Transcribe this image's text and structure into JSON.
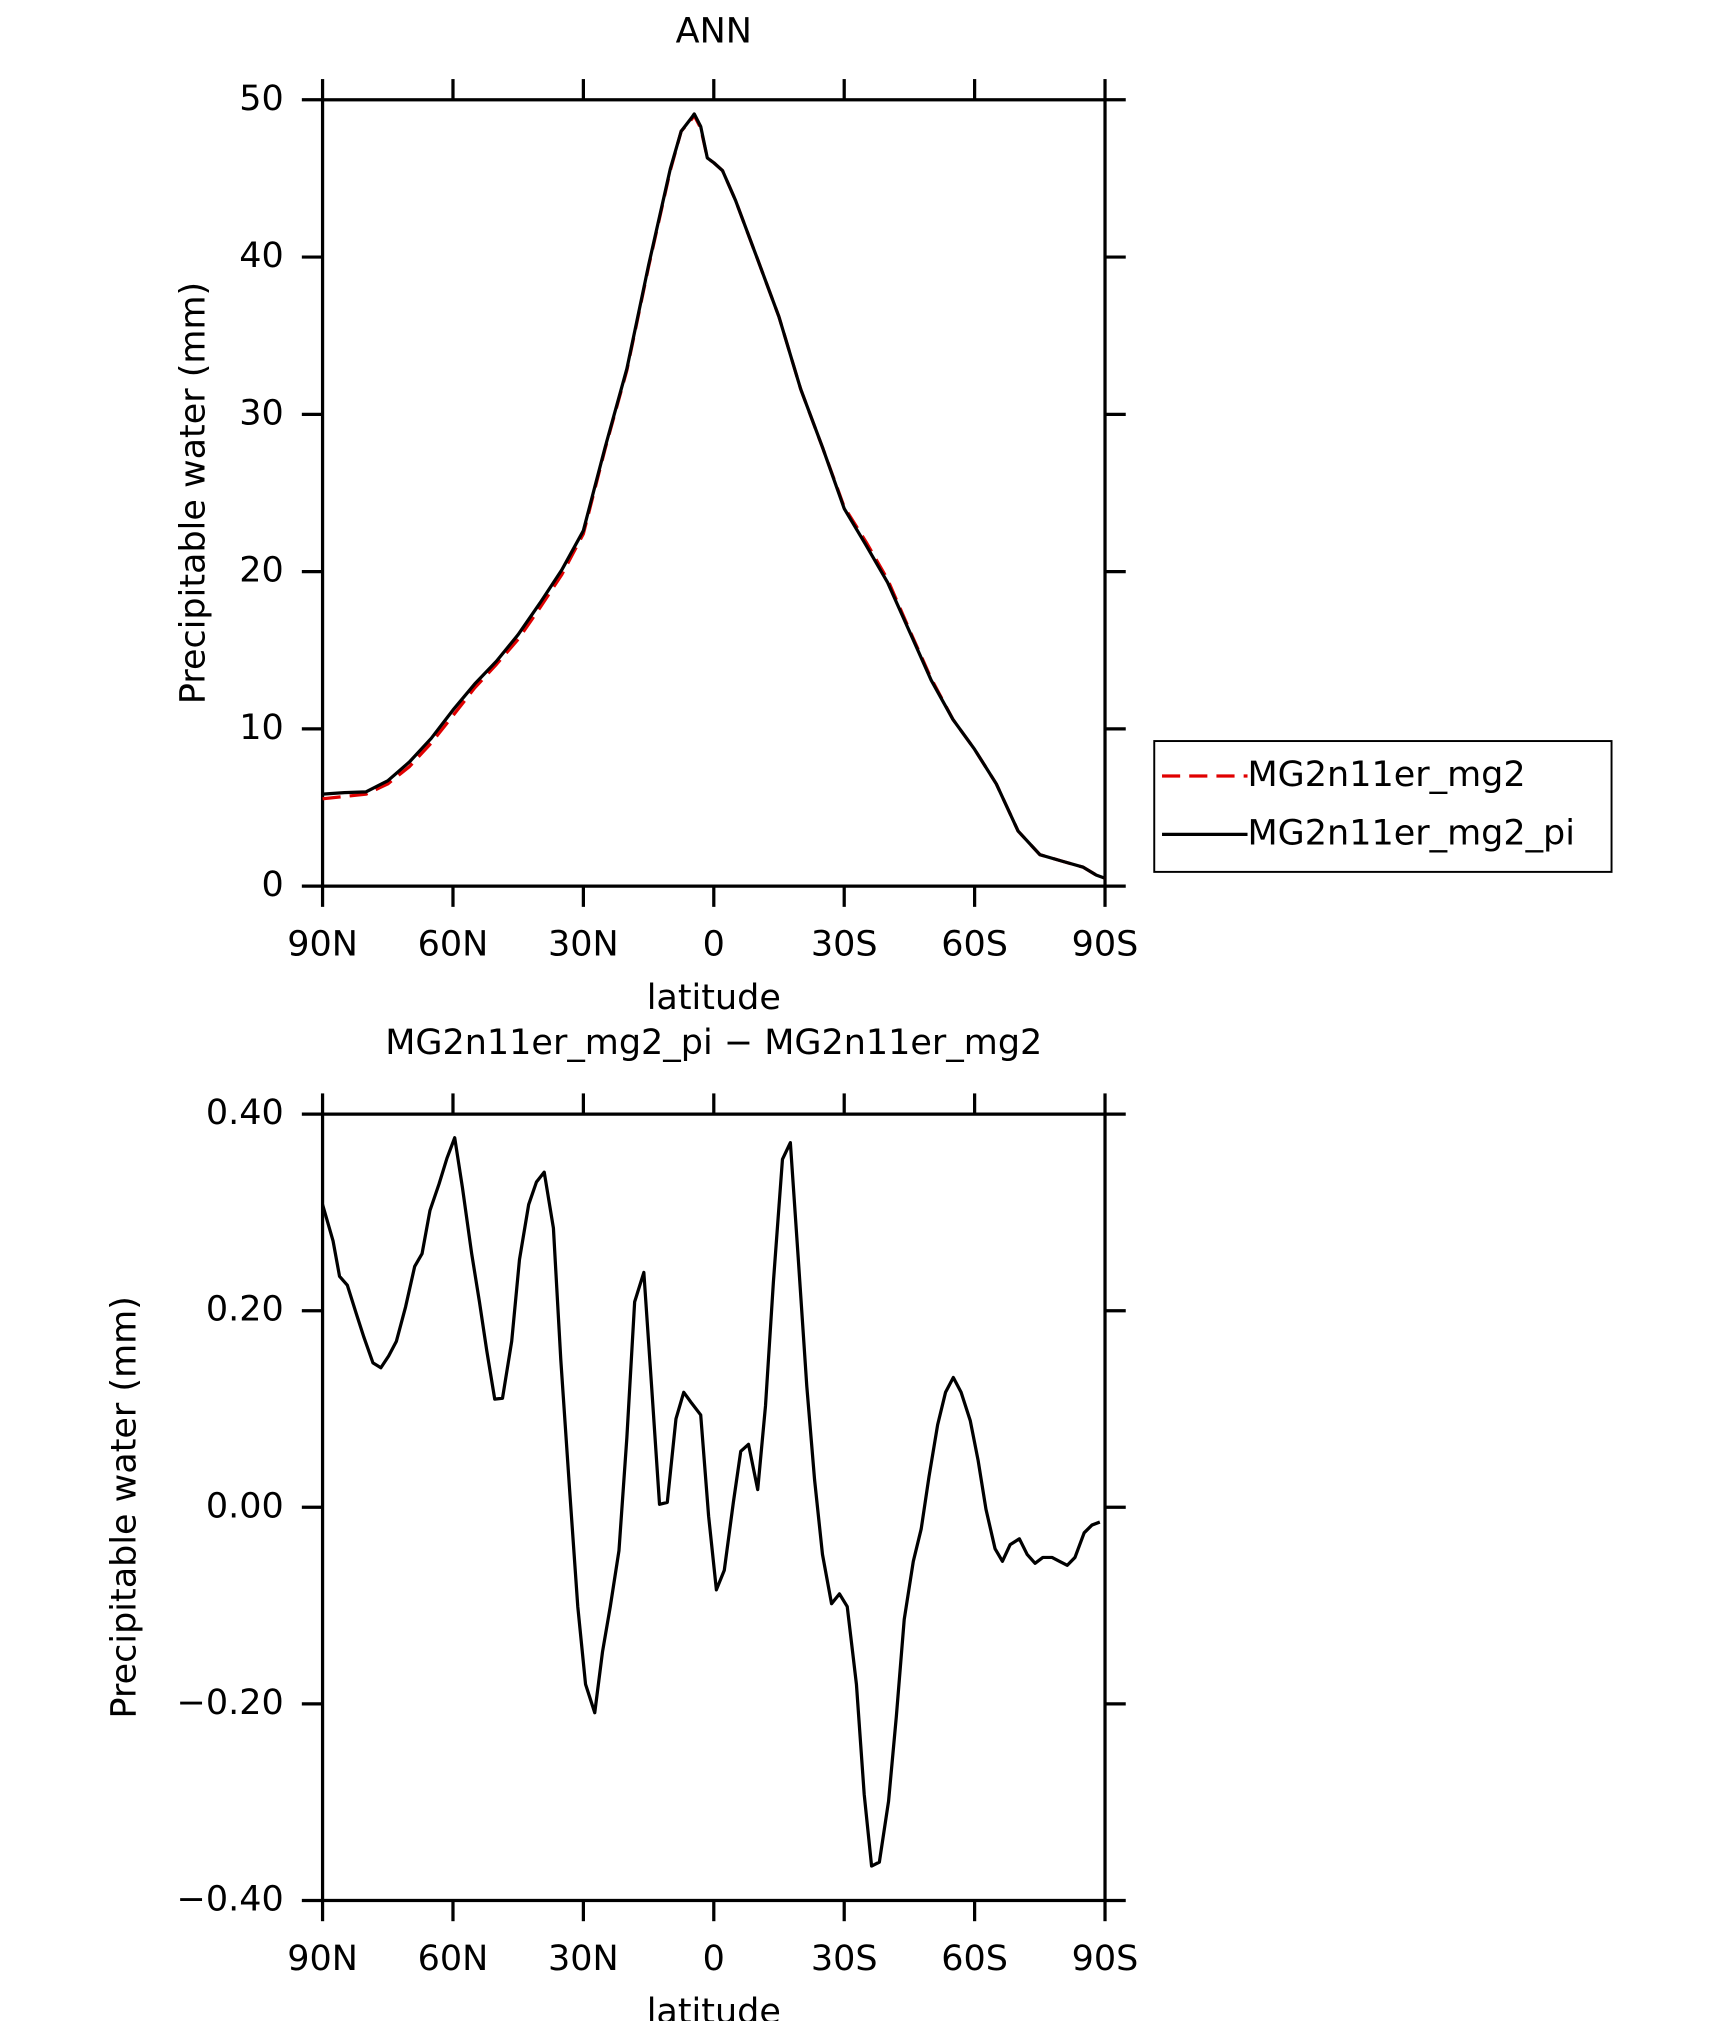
{
  "chart_data": [
    {
      "type": "line",
      "title": "ANN",
      "xlabel": "latitude",
      "ylabel": "Precipitable water (mm)",
      "xlim": [
        90,
        -90
      ],
      "xticks": [
        {
          "value": 90,
          "label": "90N"
        },
        {
          "value": 60,
          "label": "60N"
        },
        {
          "value": 30,
          "label": "30N"
        },
        0,
        {
          "value": -30,
          "label": "30S"
        },
        {
          "value": -60,
          "label": "60S"
        },
        {
          "value": -90,
          "label": "90S"
        }
      ],
      "ylim": [
        0,
        50
      ],
      "yticks": [
        0,
        10,
        20,
        30,
        40,
        50
      ],
      "legend": "right",
      "x": [
        90,
        85,
        80,
        75,
        70,
        65,
        60,
        55,
        50,
        45,
        40,
        35,
        30,
        25,
        20,
        15,
        10,
        7.5,
        5,
        4.5,
        3,
        1.5,
        0,
        -2,
        -5,
        -10,
        -15,
        -20,
        -25,
        -30,
        -35,
        -40,
        -45,
        -50,
        -55,
        -60,
        -65,
        -70,
        -75,
        -80,
        -85,
        -88,
        -90
      ],
      "series": [
        {
          "name": "MG2n11er_mg2",
          "color": "#e00000",
          "dash": true,
          "values": [
            5.55,
            5.7,
            5.85,
            6.5,
            7.6,
            9.1,
            10.85,
            12.6,
            14.1,
            15.7,
            17.7,
            19.8,
            22.4,
            27.8,
            32.8,
            39.4,
            45.5,
            48.0,
            48.8,
            49.0,
            48.2,
            46.3,
            46.0,
            45.5,
            43.6,
            39.9,
            36.2,
            31.6,
            27.9,
            24.1,
            21.9,
            19.5,
            16.3,
            13.2,
            10.6,
            8.7,
            6.5,
            3.5,
            2.0,
            1.6,
            1.2,
            0.7,
            0.5
          ]
        },
        {
          "name": "MG2n11er_mg2_pi",
          "color": "#000000",
          "dash": false,
          "values": [
            5.85,
            5.95,
            6.0,
            6.7,
            7.9,
            9.4,
            11.2,
            12.85,
            14.3,
            16.0,
            18.0,
            20.1,
            22.6,
            27.9,
            32.9,
            39.5,
            45.6,
            48.0,
            48.9,
            49.1,
            48.3,
            46.3,
            46.0,
            45.5,
            43.6,
            39.9,
            36.2,
            31.6,
            27.9,
            24.0,
            21.7,
            19.3,
            16.2,
            13.1,
            10.6,
            8.7,
            6.5,
            3.5,
            2.0,
            1.6,
            1.2,
            0.7,
            0.5
          ]
        }
      ]
    },
    {
      "type": "line",
      "title": "MG2n11er_mg2_pi − MG2n11er_mg2",
      "xlabel": "latitude",
      "ylabel": "Precipitable water (mm)",
      "xlim": [
        90,
        -90
      ],
      "xticks": [
        {
          "value": 90,
          "label": "90N"
        },
        {
          "value": 60,
          "label": "60N"
        },
        {
          "value": 30,
          "label": "30N"
        },
        0,
        {
          "value": -30,
          "label": "30S"
        },
        {
          "value": -60,
          "label": "60S"
        },
        {
          "value": -90,
          "label": "90S"
        }
      ],
      "ylim": [
        -0.4,
        0.4
      ],
      "yticks": [
        {
          "value": 0.4,
          "label": "0.40"
        },
        {
          "value": 0.2,
          "label": "0.20"
        },
        {
          "value": 0,
          "label": "0.00"
        },
        {
          "value": -0.2,
          "label": "−0.20"
        },
        {
          "value": -0.4,
          "label": "−0.40"
        }
      ],
      "color": "#000000",
      "x": [
        90,
        87.6,
        86.1,
        84.3,
        82.3,
        80.5,
        78.4,
        76.6,
        74.8,
        73.0,
        70.9,
        68.8,
        67.1,
        65.3,
        63.2,
        61.4,
        59.6,
        57.8,
        55.7,
        53.9,
        52.2,
        50.4,
        48.6,
        46.5,
        44.7,
        42.6,
        40.8,
        39.0,
        36.9,
        35.2,
        33.1,
        31.3,
        29.5,
        27.4,
        25.6,
        23.8,
        21.8,
        20.0,
        18.2,
        16.1,
        14.3,
        12.5,
        10.7,
        8.7,
        6.9,
        5.1,
        3.0,
        1.2,
        -0.6,
        -2.4,
        -4.5,
        -6.2,
        -8.0,
        -10.1,
        -11.9,
        -13.7,
        -15.8,
        -17.6,
        -19.4,
        -21.4,
        -23.2,
        -25.0,
        -27.1,
        -28.9,
        -30.7,
        -32.8,
        -34.6,
        -36.3,
        -38.1,
        -40.2,
        -42.0,
        -43.8,
        -45.9,
        -47.7,
        -49.5,
        -51.5,
        -53.3,
        -55.1,
        -56.9,
        -59.0,
        -60.8,
        -62.6,
        -64.7,
        -66.4,
        -68.2,
        -70.3,
        -72.1,
        -73.9,
        -75.7,
        -77.8,
        -79.5,
        -81.3,
        -83.1,
        -85.2,
        -87.0,
        -88.8
      ],
      "values": [
        0.308,
        0.271,
        0.235,
        0.226,
        0.198,
        0.173,
        0.147,
        0.142,
        0.154,
        0.169,
        0.204,
        0.245,
        0.258,
        0.302,
        0.329,
        0.355,
        0.376,
        0.325,
        0.258,
        0.209,
        0.159,
        0.11,
        0.111,
        0.169,
        0.252,
        0.308,
        0.331,
        0.341,
        0.284,
        0.15,
        0.014,
        -0.101,
        -0.18,
        -0.209,
        -0.147,
        -0.101,
        -0.044,
        0.071,
        0.209,
        0.239,
        0.123,
        0.003,
        0.005,
        0.09,
        0.117,
        0.106,
        0.094,
        -0.009,
        -0.084,
        -0.064,
        0.005,
        0.057,
        0.064,
        0.018,
        0.103,
        0.229,
        0.354,
        0.371,
        0.255,
        0.123,
        0.028,
        -0.048,
        -0.098,
        -0.088,
        -0.101,
        -0.18,
        -0.292,
        -0.365,
        -0.361,
        -0.299,
        -0.213,
        -0.114,
        -0.055,
        -0.022,
        0.031,
        0.084,
        0.117,
        0.132,
        0.117,
        0.088,
        0.048,
        -0.002,
        -0.042,
        -0.055,
        -0.038,
        -0.032,
        -0.048,
        -0.057,
        -0.051,
        -0.051,
        -0.055,
        -0.059,
        -0.051,
        -0.026,
        -0.018,
        -0.015
      ]
    }
  ]
}
